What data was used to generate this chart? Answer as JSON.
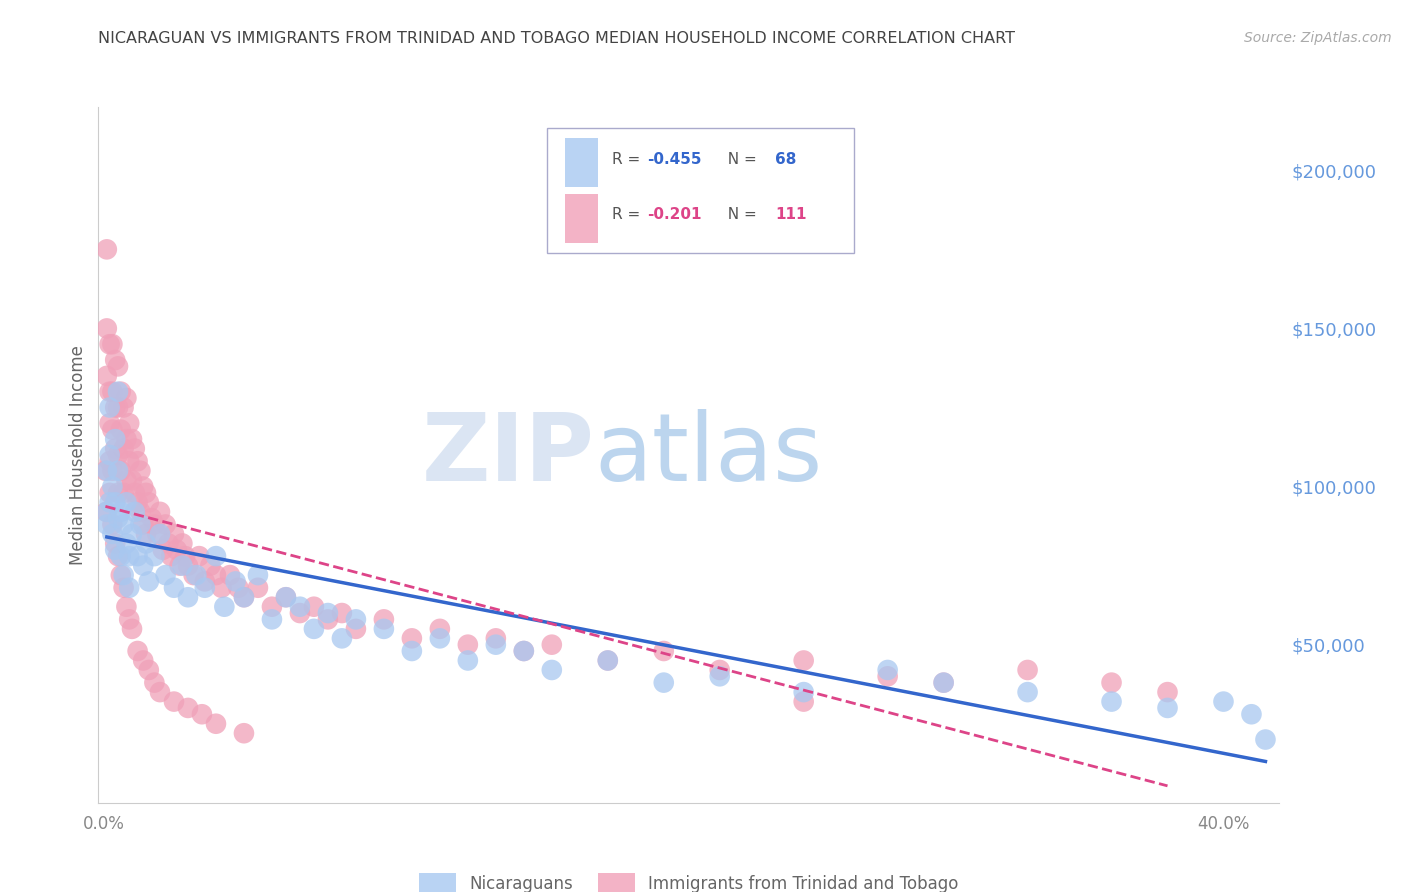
{
  "title": "NICARAGUAN VS IMMIGRANTS FROM TRINIDAD AND TOBAGO MEDIAN HOUSEHOLD INCOME CORRELATION CHART",
  "source": "Source: ZipAtlas.com",
  "ylabel": "Median Household Income",
  "right_yticks": [
    0,
    50000,
    100000,
    150000,
    200000
  ],
  "right_yticklabels": [
    "",
    "$50,000",
    "$100,000",
    "$150,000",
    "$200,000"
  ],
  "ylim": [
    0,
    220000
  ],
  "xlim": [
    -0.002,
    0.42
  ],
  "watermark": "ZIPatlas",
  "blue_color": "#a8c8f0",
  "pink_color": "#f0a0b8",
  "blue_line_color": "#3366cc",
  "pink_line_color": "#dd4488",
  "background_color": "#ffffff",
  "title_color": "#404040",
  "axis_label_color": "#6699dd",
  "grid_color": "#ddddee",
  "legend_blue_label_r": "R = ",
  "legend_blue_r_val": "-0.455",
  "legend_blue_n": "N = 68",
  "legend_pink_label_r": "R = ",
  "legend_pink_r_val": "-0.201",
  "legend_pink_n": "N = 111",
  "legend_labels_bottom": [
    "Nicaraguans",
    "Immigrants from Trinidad and Tobago"
  ],
  "nicaraguan_x": [
    0.001,
    0.001,
    0.001,
    0.002,
    0.002,
    0.002,
    0.003,
    0.003,
    0.004,
    0.004,
    0.004,
    0.005,
    0.005,
    0.005,
    0.006,
    0.006,
    0.007,
    0.007,
    0.008,
    0.008,
    0.009,
    0.009,
    0.01,
    0.011,
    0.012,
    0.013,
    0.014,
    0.015,
    0.016,
    0.018,
    0.02,
    0.022,
    0.025,
    0.028,
    0.03,
    0.033,
    0.036,
    0.04,
    0.043,
    0.047,
    0.05,
    0.055,
    0.06,
    0.065,
    0.07,
    0.075,
    0.08,
    0.085,
    0.09,
    0.1,
    0.11,
    0.12,
    0.13,
    0.14,
    0.15,
    0.16,
    0.18,
    0.2,
    0.22,
    0.25,
    0.28,
    0.3,
    0.33,
    0.36,
    0.38,
    0.4,
    0.41,
    0.415
  ],
  "nicaraguan_y": [
    92000,
    105000,
    88000,
    125000,
    110000,
    95000,
    100000,
    85000,
    115000,
    95000,
    80000,
    130000,
    105000,
    90000,
    92000,
    78000,
    88000,
    72000,
    95000,
    82000,
    78000,
    68000,
    85000,
    92000,
    78000,
    88000,
    75000,
    82000,
    70000,
    78000,
    85000,
    72000,
    68000,
    75000,
    65000,
    72000,
    68000,
    78000,
    62000,
    70000,
    65000,
    72000,
    58000,
    65000,
    62000,
    55000,
    60000,
    52000,
    58000,
    55000,
    48000,
    52000,
    45000,
    50000,
    48000,
    42000,
    45000,
    38000,
    40000,
    35000,
    42000,
    38000,
    35000,
    32000,
    30000,
    32000,
    28000,
    20000
  ],
  "trinidad_x": [
    0.0005,
    0.001,
    0.001,
    0.001,
    0.002,
    0.002,
    0.002,
    0.002,
    0.003,
    0.003,
    0.003,
    0.003,
    0.004,
    0.004,
    0.004,
    0.005,
    0.005,
    0.005,
    0.005,
    0.006,
    0.006,
    0.006,
    0.007,
    0.007,
    0.007,
    0.008,
    0.008,
    0.008,
    0.009,
    0.009,
    0.01,
    0.01,
    0.011,
    0.011,
    0.012,
    0.012,
    0.013,
    0.013,
    0.014,
    0.014,
    0.015,
    0.015,
    0.016,
    0.017,
    0.018,
    0.019,
    0.02,
    0.021,
    0.022,
    0.023,
    0.024,
    0.025,
    0.026,
    0.027,
    0.028,
    0.029,
    0.03,
    0.032,
    0.034,
    0.036,
    0.038,
    0.04,
    0.042,
    0.045,
    0.048,
    0.05,
    0.055,
    0.06,
    0.065,
    0.07,
    0.075,
    0.08,
    0.085,
    0.09,
    0.1,
    0.11,
    0.12,
    0.13,
    0.14,
    0.15,
    0.16,
    0.18,
    0.2,
    0.22,
    0.25,
    0.28,
    0.3,
    0.33,
    0.36,
    0.38,
    0.0008,
    0.002,
    0.003,
    0.004,
    0.005,
    0.006,
    0.007,
    0.008,
    0.009,
    0.01,
    0.012,
    0.014,
    0.016,
    0.018,
    0.02,
    0.025,
    0.03,
    0.035,
    0.04,
    0.05,
    0.25
  ],
  "trinidad_y": [
    105000,
    175000,
    150000,
    135000,
    145000,
    130000,
    120000,
    108000,
    145000,
    130000,
    118000,
    105000,
    140000,
    125000,
    112000,
    138000,
    125000,
    110000,
    98000,
    130000,
    118000,
    105000,
    125000,
    112000,
    98000,
    128000,
    115000,
    102000,
    120000,
    108000,
    115000,
    102000,
    112000,
    98000,
    108000,
    95000,
    105000,
    92000,
    100000,
    88000,
    98000,
    85000,
    95000,
    90000,
    88000,
    85000,
    92000,
    80000,
    88000,
    82000,
    78000,
    85000,
    80000,
    75000,
    82000,
    78000,
    75000,
    72000,
    78000,
    70000,
    75000,
    72000,
    68000,
    72000,
    68000,
    65000,
    68000,
    62000,
    65000,
    60000,
    62000,
    58000,
    60000,
    55000,
    58000,
    52000,
    55000,
    50000,
    52000,
    48000,
    50000,
    45000,
    48000,
    42000,
    45000,
    40000,
    38000,
    42000,
    38000,
    35000,
    92000,
    98000,
    88000,
    82000,
    78000,
    72000,
    68000,
    62000,
    58000,
    55000,
    48000,
    45000,
    42000,
    38000,
    35000,
    32000,
    30000,
    28000,
    25000,
    22000,
    32000
  ]
}
